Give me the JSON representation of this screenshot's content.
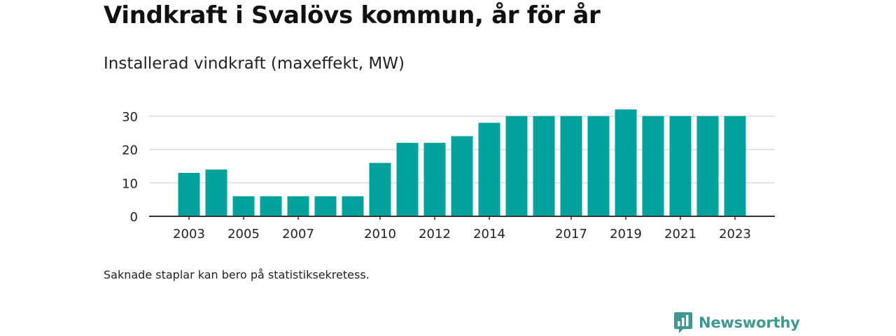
{
  "chart_data": {
    "type": "bar",
    "title": "Vindkraft i Svalövs kommun, år för år",
    "subtitle": "Installerad vindkraft (maxeffekt, MW)",
    "categories": [
      "2003",
      "2004",
      "2005",
      "2006",
      "2007",
      "2008",
      "2009",
      "2010",
      "2011",
      "2012",
      "2013",
      "2014",
      "2015",
      "2016",
      "2017",
      "2018",
      "2019",
      "2020",
      "2021",
      "2022",
      "2023"
    ],
    "x_tick_labels": [
      "2003",
      "2005",
      "2007",
      "2010",
      "2012",
      "2014",
      "2017",
      "2019",
      "2021",
      "2023"
    ],
    "values": [
      13,
      14,
      6,
      6,
      6,
      6,
      6,
      16,
      22,
      22,
      24,
      28,
      30,
      30,
      30,
      30,
      32,
      30,
      30,
      30,
      30
    ],
    "ylim": [
      0,
      33
    ],
    "y_ticks": [
      0,
      10,
      20,
      30
    ],
    "grid": true,
    "bar_color": "#00a39b"
  },
  "footnote": "Saknade staplar kan bero på statistiksekretess.",
  "brand": {
    "name": "Newsworthy",
    "icon": "newsworthy-logo-icon",
    "color": "#3f9990"
  }
}
